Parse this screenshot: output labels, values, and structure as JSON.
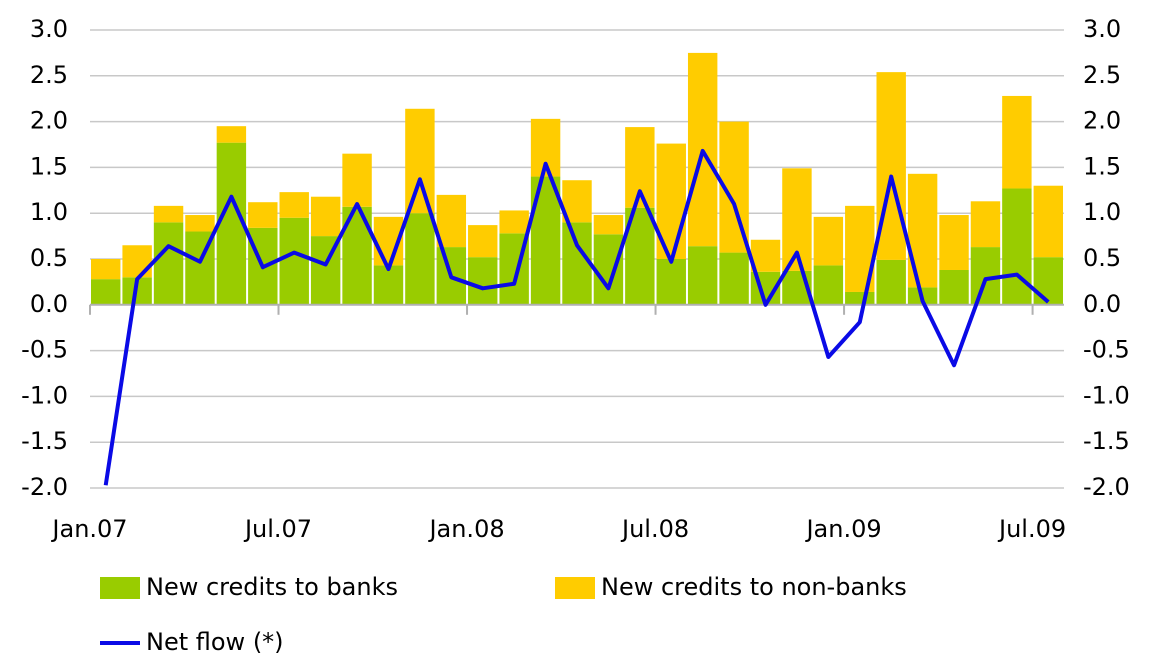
{
  "chart_data": {
    "type": "stacked-bar-line",
    "categories": [
      "Jan.07",
      null,
      null,
      null,
      null,
      null,
      "Jul.07",
      null,
      null,
      null,
      null,
      null,
      "Jan.08",
      null,
      null,
      null,
      null,
      null,
      "Jul.08",
      null,
      null,
      null,
      null,
      null,
      "Jan.09",
      null,
      null,
      null,
      null,
      null,
      "Jul.09"
    ],
    "series": [
      {
        "name": "New credits to banks",
        "color": "#99cc00",
        "kind": "bar",
        "values": [
          0.28,
          0.3,
          0.9,
          0.8,
          1.77,
          0.84,
          0.95,
          0.75,
          1.07,
          0.43,
          1.0,
          0.63,
          0.52,
          0.78,
          1.4,
          0.9,
          0.77,
          1.06,
          0.5,
          0.64,
          0.57,
          0.36,
          0.37,
          0.43,
          0.14,
          0.49,
          0.19,
          0.38,
          0.63,
          1.27,
          0.52
        ]
      },
      {
        "name": "New credits to non-banks",
        "color": "#ffcc00",
        "kind": "bar",
        "values": [
          0.22,
          0.35,
          0.18,
          0.18,
          0.18,
          0.28,
          0.28,
          0.43,
          0.58,
          0.53,
          1.14,
          0.57,
          0.35,
          0.25,
          0.63,
          0.46,
          0.21,
          0.88,
          1.26,
          2.11,
          1.43,
          0.35,
          1.12,
          0.53,
          0.94,
          2.05,
          1.24,
          0.6,
          0.5,
          1.01,
          0.78
        ]
      },
      {
        "name": "Net flow (*)",
        "color": "#0a0ae6",
        "kind": "line",
        "values": [
          -1.97,
          0.28,
          0.64,
          0.47,
          1.18,
          0.41,
          0.57,
          0.44,
          1.1,
          0.39,
          1.37,
          0.3,
          0.18,
          0.23,
          1.54,
          0.65,
          0.18,
          1.24,
          0.47,
          1.68,
          1.1,
          0.0,
          0.57,
          -0.57,
          -0.19,
          1.4,
          0.04,
          -0.66,
          0.28,
          0.33,
          0.03
        ]
      }
    ],
    "ylim": [
      -2.0,
      3.0
    ],
    "yticks": [
      {
        "value": 3.0,
        "label": "3.0"
      },
      {
        "value": 2.5,
        "label": "2.5"
      },
      {
        "value": 2.0,
        "label": "2.0"
      },
      {
        "value": 1.5,
        "label": "1.5"
      },
      {
        "value": 1.0,
        "label": "1.0"
      },
      {
        "value": 0.5,
        "label": "0.5"
      },
      {
        "value": 0,
        "label": "0.0"
      },
      {
        "value": -0.5,
        "label": "-0.5"
      },
      {
        "value": -1.0,
        "label": "-1.0"
      },
      {
        "value": -1.5,
        "label": "-1.5"
      },
      {
        "value": -2.0,
        "label": "-2.0"
      }
    ],
    "y2lim": [
      -2.0,
      3.0
    ],
    "y2ticks": [
      {
        "value": 3.0,
        "label": "3.0"
      },
      {
        "value": 2.5,
        "label": "2.5"
      },
      {
        "value": 2.0,
        "label": "2.0"
      },
      {
        "value": 1.5,
        "label": "1.5"
      },
      {
        "value": 1.0,
        "label": "1.0"
      },
      {
        "value": 0.5,
        "label": "0.5"
      },
      {
        "value": 0,
        "label": "0.0"
      },
      {
        "value": -0.5,
        "label": "-0.5"
      },
      {
        "value": -1.0,
        "label": "-1.0"
      },
      {
        "value": -1.5,
        "label": "-1.5"
      },
      {
        "value": -2.0,
        "label": "-2.0"
      }
    ],
    "grid": true
  }
}
